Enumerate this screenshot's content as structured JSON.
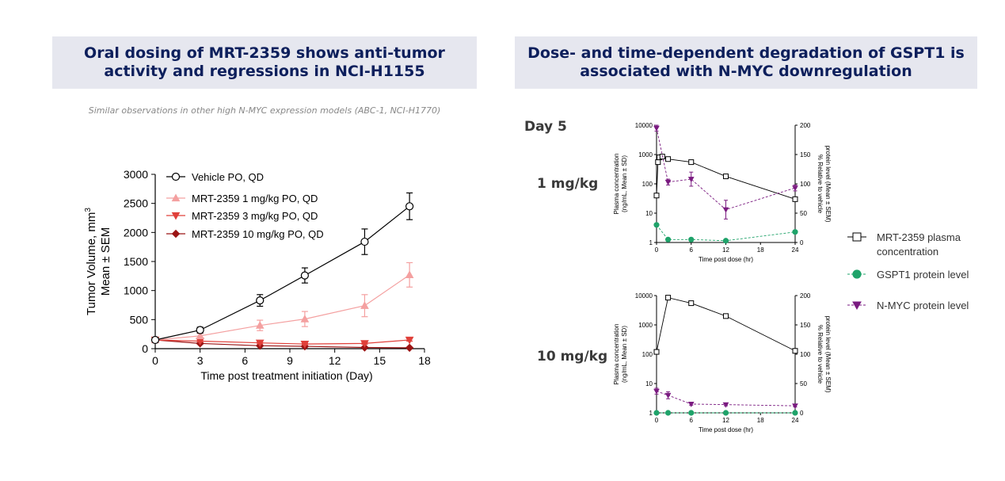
{
  "left_panel": {
    "title_line1": "Oral dosing of MRT-2359 shows anti-tumor",
    "title_line2": "activity and regressions in NCI-H1155",
    "note": "Similar observations in other high N-MYC expression models (ABC-1, NCI-H1770)"
  },
  "right_panel": {
    "title_line1": "Dose- and time-dependent degradation of GSPT1 is",
    "title_line2": "associated with N-MYC downregulation",
    "day_label": "Day 5",
    "dose_label_1": "1 mg/kg",
    "dose_label_2": "10 mg/kg",
    "legend": [
      {
        "label_line1": "MRT-2359 plasma",
        "label_line2": "concentration",
        "color": "#000000",
        "marker": "square"
      },
      {
        "label_line1": "GSPT1 protein level",
        "label_line2": "",
        "color": "#1fa36a",
        "marker": "circle"
      },
      {
        "label_line1": "N-MYC protein level",
        "label_line2": "",
        "color": "#7a1a80",
        "marker": "triangle-down"
      }
    ]
  },
  "chart_data": [
    {
      "type": "line",
      "ylabel_line1": "Tumor Volume, mm",
      "ylabel_sup": "3",
      "ylabel_line2": "Mean ± SEM",
      "xlabel": "Time post treatment initiation (Day)",
      "xlim": [
        0,
        18
      ],
      "ylim": [
        0,
        3000
      ],
      "xticks": [
        0,
        3,
        6,
        9,
        12,
        15,
        18
      ],
      "yticks": [
        0,
        500,
        1000,
        1500,
        2000,
        2500,
        3000
      ],
      "series": [
        {
          "name": "Vehicle PO, QD",
          "color": "#000000",
          "marker": "open-circle",
          "x": [
            0,
            3,
            7,
            10,
            14,
            17
          ],
          "y": [
            150,
            320,
            830,
            1260,
            1840,
            2450
          ],
          "err": [
            20,
            50,
            100,
            130,
            220,
            230
          ]
        },
        {
          "name": "MRT-2359 1 mg/kg PO, QD",
          "color": "#f4a0a0",
          "marker": "triangle-up",
          "x": [
            0,
            3,
            7,
            10,
            14,
            17
          ],
          "y": [
            150,
            220,
            400,
            510,
            740,
            1270
          ],
          "err": [
            20,
            40,
            90,
            130,
            190,
            210
          ]
        },
        {
          "name": "MRT-2359 3 mg/kg PO, QD",
          "color": "#e0403a",
          "marker": "triangle-down",
          "x": [
            0,
            3,
            7,
            10,
            14,
            17
          ],
          "y": [
            150,
            130,
            100,
            80,
            90,
            150
          ],
          "err": [
            15,
            15,
            15,
            15,
            15,
            20
          ]
        },
        {
          "name": "MRT-2359 10 mg/kg PO, QD",
          "color": "#9b1414",
          "marker": "diamond",
          "x": [
            0,
            3,
            7,
            10,
            14,
            17
          ],
          "y": [
            150,
            90,
            50,
            40,
            20,
            15
          ],
          "err": [
            10,
            10,
            8,
            8,
            5,
            5
          ]
        }
      ]
    },
    {
      "type": "line",
      "panel": "1 mg/kg",
      "ylabel_left_line1": "Plasma concentration",
      "ylabel_left_line2": "(ng/mL, Mean ± SD)",
      "ylabel_right_line1": "% Relative to vehicle",
      "ylabel_right_line2": "protein level (Mean ± SEM)",
      "xlabel": "Time post dose (hr)",
      "xlim": [
        0,
        24
      ],
      "ylim_left": [
        1,
        10000
      ],
      "ylim_right": [
        0,
        200
      ],
      "xticks": [
        0,
        6,
        12,
        18,
        24
      ],
      "yticks_left": [
        "1",
        "10",
        "100",
        "1000",
        "10000"
      ],
      "yticks_right": [
        0,
        50,
        100,
        150,
        200
      ],
      "series": [
        {
          "name": "MRT-2359 plasma concentration",
          "axis": "left",
          "x": [
            0,
            0.25,
            0.5,
            1,
            2,
            6,
            12,
            24
          ],
          "y": [
            40,
            550,
            800,
            850,
            700,
            550,
            180,
            30
          ]
        },
        {
          "name": "GSPT1 protein level",
          "axis": "right",
          "x": [
            0,
            2,
            6,
            12,
            24
          ],
          "y": [
            30,
            5,
            5,
            3,
            18
          ]
        },
        {
          "name": "N-MYC protein level",
          "axis": "right",
          "x": [
            0,
            2,
            6,
            12,
            24
          ],
          "y": [
            195,
            103,
            108,
            56,
            93
          ],
          "err": [
            5,
            5,
            12,
            16,
            5
          ]
        }
      ]
    },
    {
      "type": "line",
      "panel": "10 mg/kg",
      "ylabel_left_line1": "Plasma concentration",
      "ylabel_left_line2": "(ng/mL, Mean ± SD)",
      "ylabel_right_line1": "% Relative to vehicle",
      "ylabel_right_line2": "protein level (Mean ± SEM)",
      "xlabel": "Time post dose (hr)",
      "xlim": [
        0,
        24
      ],
      "ylim_left": [
        1,
        10000
      ],
      "ylim_right": [
        0,
        200
      ],
      "xticks": [
        0,
        6,
        12,
        18,
        24
      ],
      "yticks_left": [
        "1",
        "10",
        "100",
        "1000",
        "10000"
      ],
      "yticks_right": [
        0,
        50,
        100,
        150,
        200
      ],
      "series": [
        {
          "name": "MRT-2359 plasma concentration",
          "axis": "left",
          "x": [
            0,
            2,
            6,
            12,
            24
          ],
          "y": [
            120,
            8500,
            5500,
            2000,
            130
          ]
        },
        {
          "name": "GSPT1 protein level",
          "axis": "right",
          "x": [
            0,
            2,
            6,
            12,
            24
          ],
          "y": [
            0,
            0,
            0,
            0,
            0
          ]
        },
        {
          "name": "N-MYC protein level",
          "axis": "right",
          "x": [
            0,
            2,
            6,
            12,
            24
          ],
          "y": [
            37,
            30,
            15,
            14,
            12
          ],
          "err": [
            5,
            6,
            2,
            2,
            2
          ]
        }
      ]
    }
  ]
}
